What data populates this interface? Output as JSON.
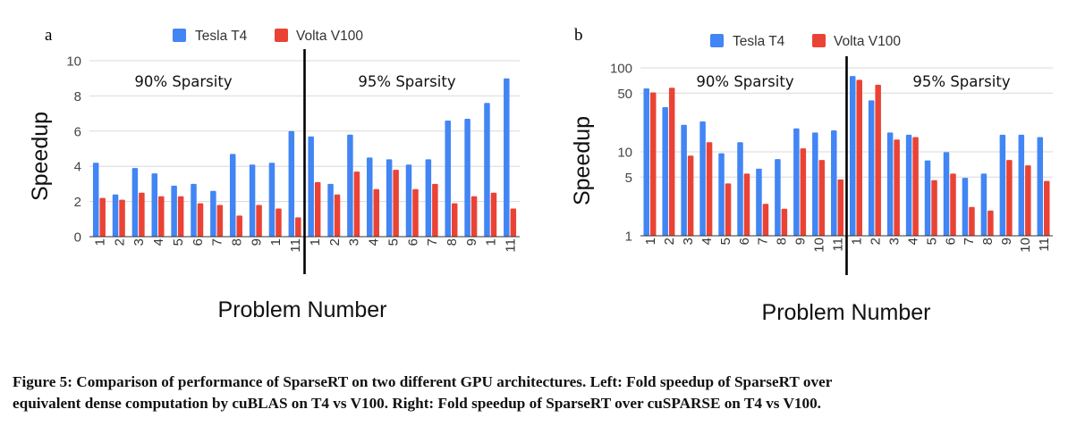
{
  "colors": {
    "tesla": "#4285f4",
    "volta": "#ea4335",
    "axis": "#333333",
    "grid": "#d9d9d9",
    "divider": "#000000"
  },
  "caption": {
    "line1": "Figure 5: Comparison of performance of SparseRT on two different GPU architectures. Left: Fold speedup of SparseRT over",
    "line2": "equivalent dense computation by cuBLAS on T4 vs V100. Right: Fold speedup of SparseRT over cuSPARSE on T4 vs V100."
  },
  "chart_data": [
    {
      "panel_label": "a",
      "type": "bar",
      "title": "",
      "xlabel": "Problem Number",
      "ylabel": "Speedup",
      "y_scale": "linear",
      "ylim": [
        0,
        10
      ],
      "yticks": [
        0,
        2,
        4,
        6,
        8,
        10
      ],
      "grid": true,
      "legend": "top-center",
      "categories": [
        "1",
        "2",
        "3",
        "4",
        "5",
        "6",
        "7",
        "8",
        "9",
        "1",
        "11",
        "1",
        "2",
        "3",
        "4",
        "5",
        "6",
        "7",
        "8",
        "9",
        "1",
        "11"
      ],
      "series": [
        {
          "name": "Tesla T4",
          "values": [
            4.2,
            2.4,
            3.9,
            3.6,
            2.9,
            3.0,
            2.6,
            4.7,
            4.1,
            4.2,
            6.0,
            5.7,
            3.0,
            5.8,
            4.5,
            4.4,
            4.1,
            4.4,
            6.6,
            6.7,
            7.6,
            9.0
          ]
        },
        {
          "name": "Volta V100",
          "values": [
            2.2,
            2.1,
            2.5,
            2.3,
            2.3,
            1.9,
            1.8,
            1.2,
            1.8,
            1.6,
            1.1,
            3.1,
            2.4,
            3.7,
            2.7,
            3.8,
            2.7,
            3.0,
            1.9,
            2.3,
            2.5,
            1.6
          ]
        }
      ],
      "annotations": [
        "90% Sparsity",
        "95% Sparsity"
      ],
      "divider_after_index": 10
    },
    {
      "panel_label": "b",
      "type": "bar",
      "title": "",
      "xlabel": "Problem Number",
      "ylabel": "Speedup",
      "y_scale": "log",
      "ylim": [
        1,
        100
      ],
      "yticks": [
        1,
        5,
        10,
        50,
        100
      ],
      "grid": true,
      "legend": "top-center",
      "categories": [
        "1",
        "2",
        "3",
        "4",
        "5",
        "6",
        "7",
        "8",
        "9",
        "10",
        "11",
        "1",
        "2",
        "3",
        "4",
        "5",
        "6",
        "7",
        "8",
        "9",
        "10",
        "11"
      ],
      "series": [
        {
          "name": "Tesla T4",
          "values": [
            57,
            34,
            21,
            23,
            9.6,
            13,
            6.3,
            8.2,
            19,
            17,
            18,
            80,
            41,
            17,
            16,
            7.9,
            9.9,
            4.9,
            5.5,
            16,
            16,
            15
          ]
        },
        {
          "name": "Volta V100",
          "values": [
            51,
            58,
            9.0,
            13,
            4.2,
            5.5,
            2.4,
            2.1,
            11,
            8.0,
            4.7,
            72,
            63,
            14,
            15,
            4.6,
            5.5,
            2.2,
            2.0,
            8.0,
            6.9,
            4.5
          ]
        }
      ],
      "annotations": [
        "90% Sparsity",
        "95% Sparsity"
      ],
      "divider_after_index": 10
    }
  ]
}
